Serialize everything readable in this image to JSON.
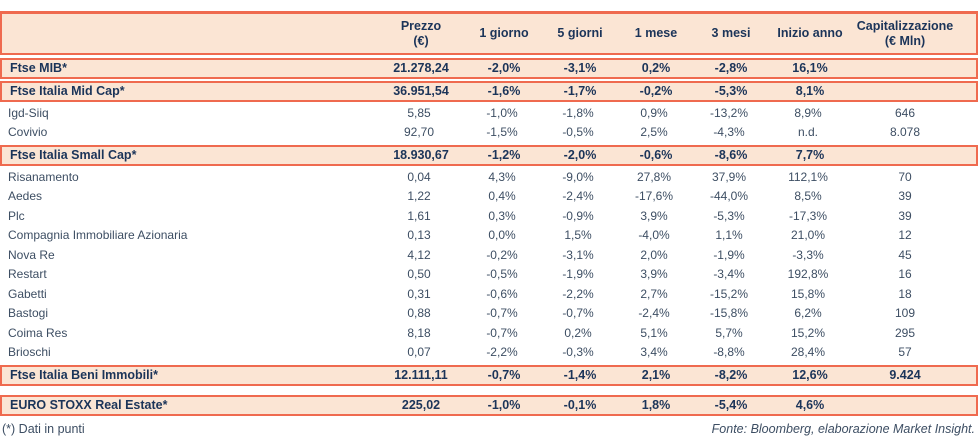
{
  "colors": {
    "salmon": "#EF6A4F",
    "peach": "#FBE5D4",
    "navy": "#1B3459",
    "body_text": "#3D4E63"
  },
  "table": {
    "columns": [
      {
        "label": "",
        "sublabel": ""
      },
      {
        "label": "Prezzo",
        "sublabel": "(€)"
      },
      {
        "label": "1 giorno",
        "sublabel": ""
      },
      {
        "label": "5 giorni",
        "sublabel": ""
      },
      {
        "label": "1 mese",
        "sublabel": ""
      },
      {
        "label": "3 mesi",
        "sublabel": ""
      },
      {
        "label": "Inizio anno",
        "sublabel": ""
      },
      {
        "label": "Capitalizzazione",
        "sublabel": "(€ Mln)"
      }
    ],
    "rows": [
      {
        "name": "Ftse MIB*",
        "type": "index",
        "values": [
          "21.278,24",
          "-2,0%",
          "-3,1%",
          "0,2%",
          "-2,8%",
          "16,1%",
          ""
        ]
      },
      {
        "name": "Ftse Italia Mid Cap*",
        "type": "index",
        "values": [
          "36.951,54",
          "-1,6%",
          "-1,7%",
          "-0,2%",
          "-5,3%",
          "8,1%",
          ""
        ]
      },
      {
        "name": "Igd-Siiq",
        "type": "stock",
        "values": [
          "5,85",
          "-1,0%",
          "-1,8%",
          "0,9%",
          "-13,2%",
          "8,9%",
          "646"
        ]
      },
      {
        "name": "Covivio",
        "type": "stock",
        "values": [
          "92,70",
          "-1,5%",
          "-0,5%",
          "2,5%",
          "-4,3%",
          "n.d.",
          "8.078"
        ]
      },
      {
        "name": "Ftse Italia Small Cap*",
        "type": "index",
        "values": [
          "18.930,67",
          "-1,2%",
          "-2,0%",
          "-0,6%",
          "-8,6%",
          "7,7%",
          ""
        ]
      },
      {
        "name": "Risanamento",
        "type": "stock",
        "values": [
          "0,04",
          "4,3%",
          "-9,0%",
          "27,8%",
          "37,9%",
          "112,1%",
          "70"
        ]
      },
      {
        "name": "Aedes",
        "type": "stock",
        "values": [
          "1,22",
          "0,4%",
          "-2,4%",
          "-17,6%",
          "-44,0%",
          "8,5%",
          "39"
        ]
      },
      {
        "name": "Plc",
        "type": "stock",
        "values": [
          "1,61",
          "0,3%",
          "-0,9%",
          "3,9%",
          "-5,3%",
          "-17,3%",
          "39"
        ]
      },
      {
        "name": "Compagnia Immobiliare Azionaria",
        "type": "stock",
        "values": [
          "0,13",
          "0,0%",
          "1,5%",
          "-4,0%",
          "1,1%",
          "21,0%",
          "12"
        ]
      },
      {
        "name": "Nova Re",
        "type": "stock",
        "values": [
          "4,12",
          "-0,2%",
          "-3,1%",
          "2,0%",
          "-1,9%",
          "-3,3%",
          "45"
        ]
      },
      {
        "name": "Restart",
        "type": "stock",
        "values": [
          "0,50",
          "-0,5%",
          "-1,9%",
          "3,9%",
          "-3,4%",
          "192,8%",
          "16"
        ]
      },
      {
        "name": "Gabetti",
        "type": "stock",
        "values": [
          "0,31",
          "-0,6%",
          "-2,2%",
          "2,7%",
          "-15,2%",
          "15,8%",
          "18"
        ]
      },
      {
        "name": "Bastogi",
        "type": "stock",
        "values": [
          "0,88",
          "-0,7%",
          "-0,7%",
          "-2,4%",
          "-15,8%",
          "6,2%",
          "109"
        ]
      },
      {
        "name": "Coima Res",
        "type": "stock",
        "values": [
          "8,18",
          "-0,7%",
          "0,2%",
          "5,1%",
          "5,7%",
          "15,2%",
          "295"
        ]
      },
      {
        "name": "Brioschi",
        "type": "stock",
        "values": [
          "0,07",
          "-2,2%",
          "-0,3%",
          "3,4%",
          "-8,8%",
          "28,4%",
          "57"
        ]
      },
      {
        "name": "Ftse Italia Beni Immobili*",
        "type": "index",
        "values": [
          "12.111,11",
          "-0,7%",
          "-1,4%",
          "2,1%",
          "-8,2%",
          "12,6%",
          "9.424"
        ]
      },
      {
        "name": "EURO STOXX Real Estate*",
        "type": "index",
        "gap_before": true,
        "values": [
          "225,02",
          "-1,0%",
          "-0,1%",
          "1,8%",
          "-5,4%",
          "4,6%",
          ""
        ]
      }
    ]
  },
  "footer": {
    "left": "(*) Dati in punti",
    "right": "Fonte: Bloomberg, elaborazione Market Insight."
  }
}
